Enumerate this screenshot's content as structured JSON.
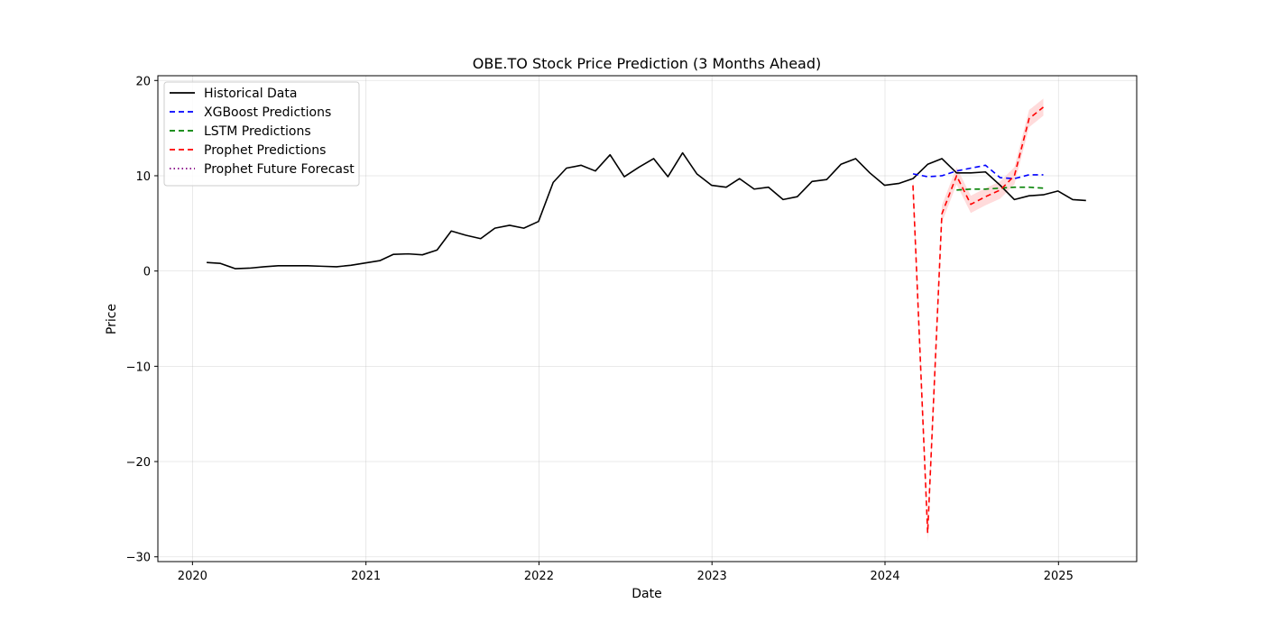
{
  "chart_data": {
    "type": "line",
    "title": "OBE.TO Stock Price Prediction (3 Months Ahead)",
    "xlabel": "Date",
    "ylabel": "Price",
    "x_ticks": [
      "2020",
      "2021",
      "2022",
      "2023",
      "2024",
      "2025"
    ],
    "y_ticks": [
      20,
      10,
      0,
      -10,
      -20,
      -30
    ],
    "xlim": [
      "2019-10-20",
      "2025-06-15"
    ],
    "ylim": [
      -30.5,
      20.5
    ],
    "grid": true,
    "legend_position": "top-left",
    "series": [
      {
        "name": "Historical Data",
        "color": "#000000",
        "style": "solid",
        "points": [
          [
            "2020-01-31",
            0.9
          ],
          [
            "2020-02-29",
            0.8
          ],
          [
            "2020-03-31",
            0.25
          ],
          [
            "2020-04-30",
            0.3
          ],
          [
            "2020-05-31",
            0.45
          ],
          [
            "2020-06-30",
            0.55
          ],
          [
            "2020-07-31",
            0.55
          ],
          [
            "2020-08-31",
            0.55
          ],
          [
            "2020-09-30",
            0.5
          ],
          [
            "2020-10-31",
            0.45
          ],
          [
            "2020-11-30",
            0.6
          ],
          [
            "2020-12-31",
            0.85
          ],
          [
            "2021-01-31",
            1.1
          ],
          [
            "2021-02-28",
            1.75
          ],
          [
            "2021-03-31",
            1.8
          ],
          [
            "2021-04-30",
            1.7
          ],
          [
            "2021-05-31",
            2.2
          ],
          [
            "2021-06-30",
            4.2
          ],
          [
            "2021-07-31",
            3.75
          ],
          [
            "2021-08-31",
            3.4
          ],
          [
            "2021-09-30",
            4.5
          ],
          [
            "2021-10-31",
            4.8
          ],
          [
            "2021-11-30",
            4.5
          ],
          [
            "2021-12-31",
            5.2
          ],
          [
            "2022-01-31",
            9.3
          ],
          [
            "2022-02-28",
            10.8
          ],
          [
            "2022-03-31",
            11.1
          ],
          [
            "2022-04-30",
            10.5
          ],
          [
            "2022-05-31",
            12.2
          ],
          [
            "2022-06-30",
            9.9
          ],
          [
            "2022-07-31",
            10.9
          ],
          [
            "2022-08-31",
            11.8
          ],
          [
            "2022-09-30",
            9.9
          ],
          [
            "2022-10-31",
            12.4
          ],
          [
            "2022-11-30",
            10.2
          ],
          [
            "2022-12-31",
            9.0
          ],
          [
            "2023-01-31",
            8.8
          ],
          [
            "2023-02-28",
            9.7
          ],
          [
            "2023-03-31",
            8.6
          ],
          [
            "2023-04-30",
            8.8
          ],
          [
            "2023-05-31",
            7.5
          ],
          [
            "2023-06-30",
            7.8
          ],
          [
            "2023-07-31",
            9.4
          ],
          [
            "2023-08-31",
            9.6
          ],
          [
            "2023-09-30",
            11.2
          ],
          [
            "2023-10-31",
            11.8
          ],
          [
            "2023-11-30",
            10.3
          ],
          [
            "2023-12-31",
            9.0
          ],
          [
            "2024-01-31",
            9.2
          ],
          [
            "2024-02-29",
            9.7
          ],
          [
            "2024-03-31",
            11.2
          ],
          [
            "2024-04-30",
            11.8
          ],
          [
            "2024-05-31",
            10.3
          ],
          [
            "2024-06-30",
            10.3
          ],
          [
            "2024-07-31",
            10.4
          ],
          [
            "2024-08-31",
            9.0
          ],
          [
            "2024-09-30",
            7.5
          ],
          [
            "2024-10-31",
            7.9
          ],
          [
            "2024-11-30",
            8.0
          ],
          [
            "2024-12-31",
            8.4
          ],
          [
            "2025-01-31",
            7.5
          ],
          [
            "2025-02-28",
            7.4
          ]
        ]
      },
      {
        "name": "XGBoost Predictions",
        "color": "#0000ff",
        "style": "dashed",
        "points": [
          [
            "2024-02-29",
            10.2
          ],
          [
            "2024-03-31",
            9.9
          ],
          [
            "2024-04-30",
            10.0
          ],
          [
            "2024-05-31",
            10.5
          ],
          [
            "2024-06-30",
            10.8
          ],
          [
            "2024-07-31",
            11.1
          ],
          [
            "2024-08-31",
            9.8
          ],
          [
            "2024-09-30",
            9.7
          ],
          [
            "2024-10-31",
            10.1
          ],
          [
            "2024-11-30",
            10.1
          ]
        ]
      },
      {
        "name": "LSTM Predictions",
        "color": "#008000",
        "style": "dashed",
        "points": [
          [
            "2024-05-31",
            8.5
          ],
          [
            "2024-06-30",
            8.6
          ],
          [
            "2024-07-31",
            8.6
          ],
          [
            "2024-08-31",
            8.7
          ],
          [
            "2024-09-30",
            8.8
          ],
          [
            "2024-10-31",
            8.8
          ],
          [
            "2024-11-30",
            8.7
          ]
        ]
      },
      {
        "name": "Prophet Predictions",
        "color": "#ff0000",
        "style": "dashed",
        "band_color": "#ffcccc",
        "points": [
          [
            "2024-02-29",
            9.0
          ],
          [
            "2024-03-31",
            -27.5
          ],
          [
            "2024-04-30",
            6.0
          ],
          [
            "2024-05-31",
            10.0
          ],
          [
            "2024-06-30",
            7.0
          ],
          [
            "2024-07-31",
            7.8
          ],
          [
            "2024-08-31",
            8.5
          ],
          [
            "2024-09-30",
            10.0
          ],
          [
            "2024-10-31",
            16.0
          ],
          [
            "2024-11-30",
            17.2
          ]
        ],
        "band_half_width": 0.9
      },
      {
        "name": "Prophet Future Forecast",
        "color": "#800080",
        "style": "dotted",
        "points": []
      }
    ]
  }
}
